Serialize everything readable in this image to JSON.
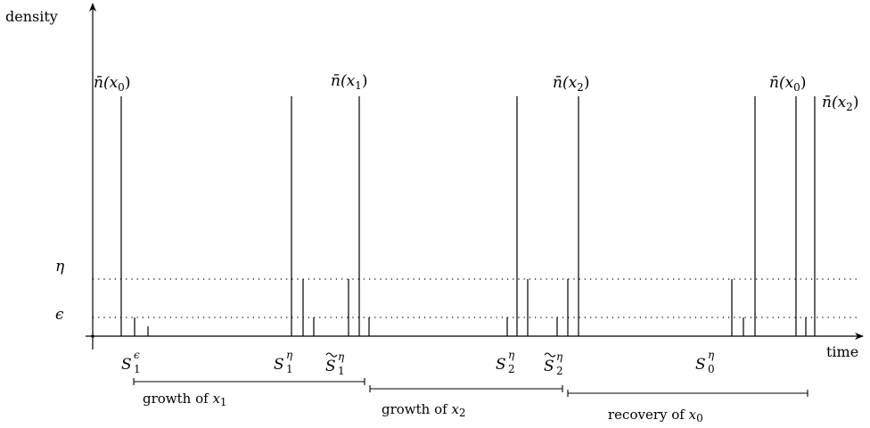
{
  "axes": {
    "y_label": "density",
    "x_label": "time"
  },
  "levels": {
    "eta": "η",
    "epsilon": "ϵ"
  },
  "peak_labels": [
    {
      "base": "n̄(x",
      "sub": "0",
      "close": ")"
    },
    {
      "base": "n̄(x",
      "sub": "1",
      "close": ")"
    },
    {
      "base": "n̄(x",
      "sub": "2",
      "close": ")"
    },
    {
      "base": "n̄(x",
      "sub": "0",
      "close": ")"
    },
    {
      "base": "n̄(x",
      "sub": "2",
      "close": ")"
    }
  ],
  "time_markers": [
    {
      "base": "S",
      "sub": "1",
      "sup": "ϵ",
      "tilde": false
    },
    {
      "base": "S",
      "sub": "1",
      "sup": "η",
      "tilde": false
    },
    {
      "base": "S",
      "sub": "1",
      "sup": "η",
      "tilde": true
    },
    {
      "base": "S",
      "sub": "2",
      "sup": "η",
      "tilde": false
    },
    {
      "base": "S",
      "sub": "2",
      "sup": "η",
      "tilde": true
    },
    {
      "base": "S",
      "sub": "0",
      "sup": "η",
      "tilde": false
    }
  ],
  "phases": [
    {
      "text": "growth of ",
      "var": "x",
      "sub": "1"
    },
    {
      "text": "growth of ",
      "var": "x",
      "sub": "2"
    },
    {
      "text": "recovery of ",
      "var": "x",
      "sub": "0"
    }
  ]
}
